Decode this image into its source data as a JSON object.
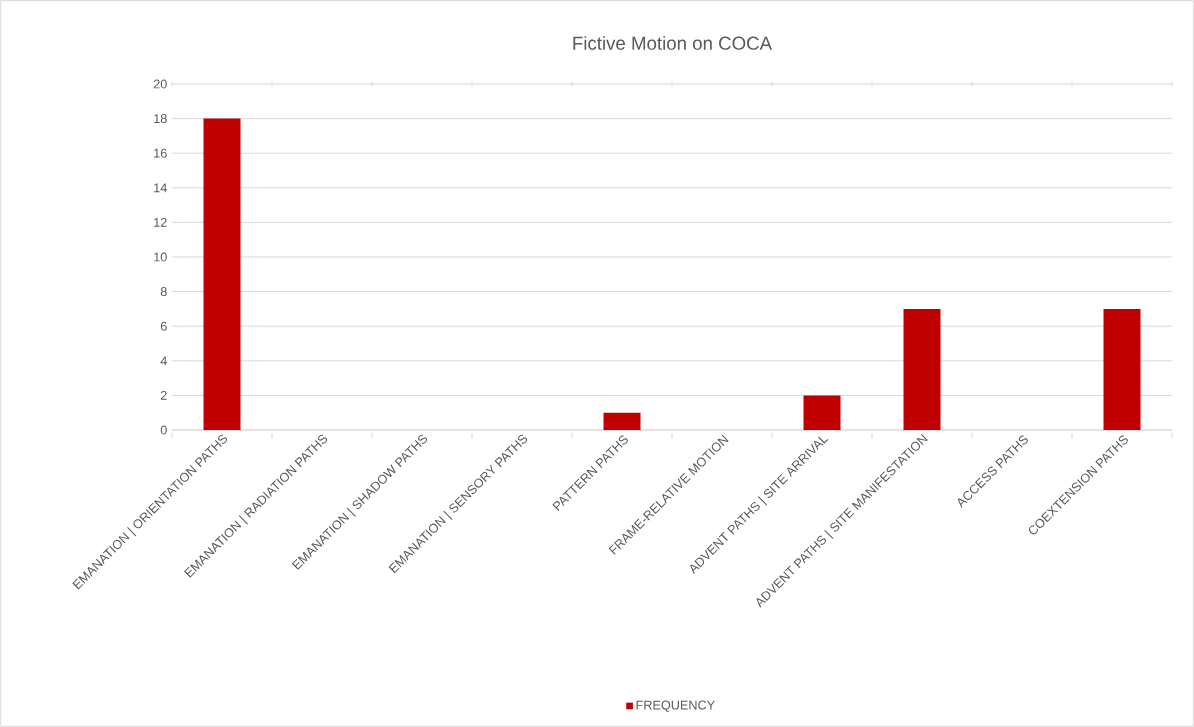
{
  "chart_data": {
    "type": "bar",
    "title": "Fictive Motion on COCA",
    "categories": [
      "EMANATION | ORIENTATION PATHS",
      "EMANATION | RADIATION PATHS",
      "EMANATION | SHADOW PATHS",
      "EMANATION | SENSORY PATHS",
      "PATTERN PATHS",
      "FRAME-RELATIVE MOTION",
      "ADVENT PATHS | SITE ARRIVAL",
      "ADVENT PATHS | SITE MANIFESTATION",
      "ACCESS PATHS",
      "COEXTENSION PATHS"
    ],
    "series": [
      {
        "name": "FREQUENCY",
        "color": "#c00000",
        "values": [
          18,
          0,
          0,
          0,
          1,
          0,
          2,
          7,
          0,
          7
        ]
      }
    ],
    "ylim": [
      0,
      20
    ],
    "yticks": [
      0,
      2,
      4,
      6,
      8,
      10,
      12,
      14,
      16,
      18,
      20
    ],
    "grid": "y",
    "legend": "bottom"
  }
}
